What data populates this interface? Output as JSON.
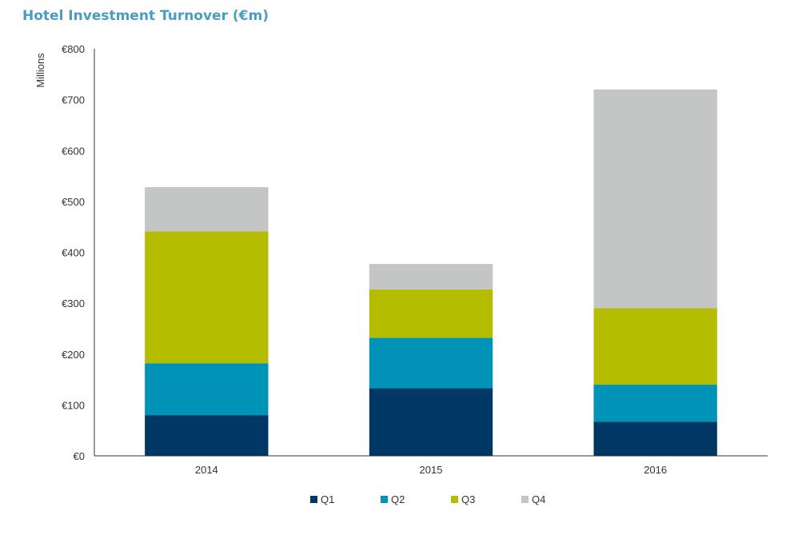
{
  "chart_data": {
    "type": "bar",
    "stacked": true,
    "title": "Hotel Investment Turnover (€m)",
    "ylabel": "Millions",
    "xlabel": "",
    "categories": [
      "2014",
      "2015",
      "2016"
    ],
    "series": [
      {
        "name": "Q1",
        "values": [
          80,
          133,
          67
        ],
        "color": "#003865"
      },
      {
        "name": "Q2",
        "values": [
          102,
          99,
          73
        ],
        "color": "#0093b8"
      },
      {
        "name": "Q3",
        "values": [
          259,
          95,
          150
        ],
        "color": "#b5bd00"
      },
      {
        "name": "Q4",
        "values": [
          87,
          50,
          430
        ],
        "color": "#c4c6c5"
      }
    ],
    "ylim": [
      0,
      800
    ],
    "yticks": [
      0,
      100,
      200,
      300,
      400,
      500,
      600,
      700,
      800
    ],
    "ytick_labels": [
      "€0",
      "€100",
      "€200",
      "€300",
      "€400",
      "€500",
      "€600",
      "€700",
      "€800"
    ],
    "grid": false,
    "legend_position": "bottom"
  }
}
